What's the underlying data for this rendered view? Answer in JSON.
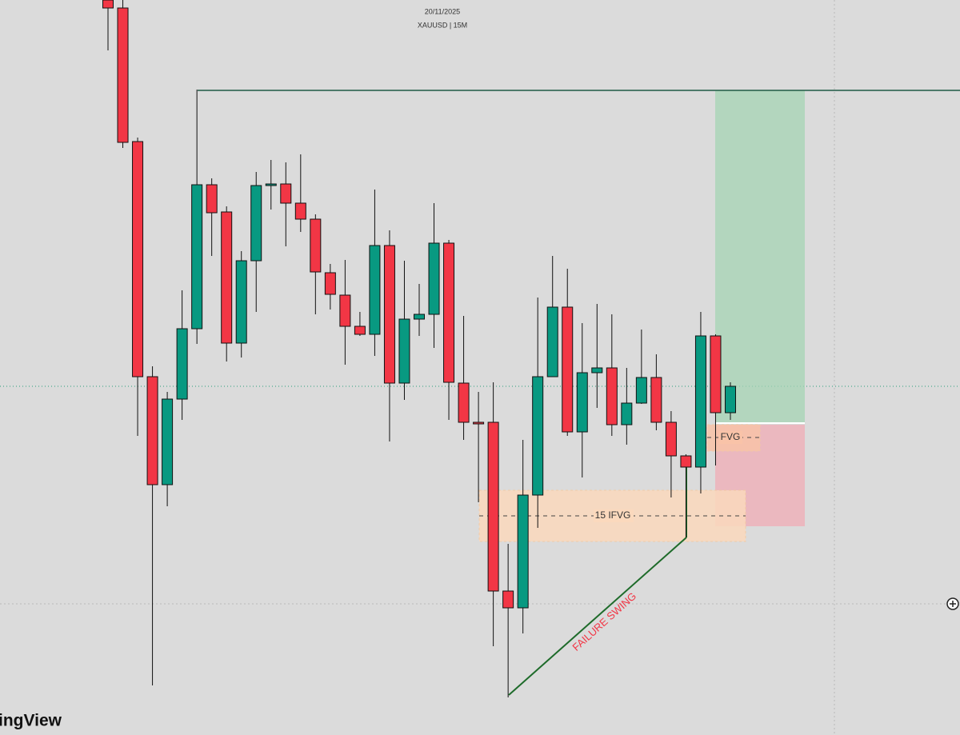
{
  "header": {
    "date": "20/11/2025",
    "symbol": "XAUUSD | 15M"
  },
  "chart_data": {
    "type": "candlestick",
    "ylim": [
      0,
      919
    ],
    "up_color": "#089981",
    "down_color": "#f23645",
    "open": [
      919,
      909,
      742,
      448,
      313,
      420,
      508,
      688,
      654,
      490,
      593,
      687,
      689,
      665,
      645,
      578,
      550,
      511,
      501,
      612,
      440,
      520,
      526,
      615,
      440,
      391,
      391,
      180,
      159,
      300,
      448,
      535,
      379,
      453,
      459,
      388,
      415,
      447,
      391,
      349,
      335,
      499,
      403
    ],
    "high": [
      919,
      919,
      747,
      461,
      429,
      556,
      807,
      696,
      661,
      605,
      704,
      719,
      716,
      726,
      651,
      589,
      594,
      529,
      682,
      631,
      593,
      564,
      665,
      619,
      524,
      429,
      441,
      239,
      369,
      547,
      599,
      583,
      515,
      539,
      526,
      459,
      507,
      476,
      405,
      351,
      529,
      501,
      441
    ],
    "low": [
      856,
      734,
      374,
      62,
      286,
      394,
      489,
      599,
      467,
      472,
      529,
      657,
      611,
      629,
      526,
      532,
      463,
      499,
      474,
      367,
      419,
      499,
      484,
      394,
      369,
      291,
      111,
      47,
      127,
      259,
      449,
      374,
      322,
      409,
      374,
      363,
      414,
      381,
      297,
      247,
      302,
      337,
      394
    ],
    "close": [
      909,
      741,
      448,
      313,
      420,
      508,
      688,
      653,
      490,
      593,
      687,
      689,
      665,
      645,
      579,
      551,
      511,
      501,
      612,
      440,
      520,
      526,
      615,
      441,
      391,
      390,
      180,
      159,
      300,
      448,
      535,
      379,
      453,
      459,
      388,
      415,
      447,
      391,
      349,
      335,
      499,
      403,
      436
    ]
  },
  "annotations": {
    "fvg": "FVG",
    "ifvg": "15 IFVG",
    "swing": "FAILURE SWING"
  },
  "watermark": "ingView"
}
